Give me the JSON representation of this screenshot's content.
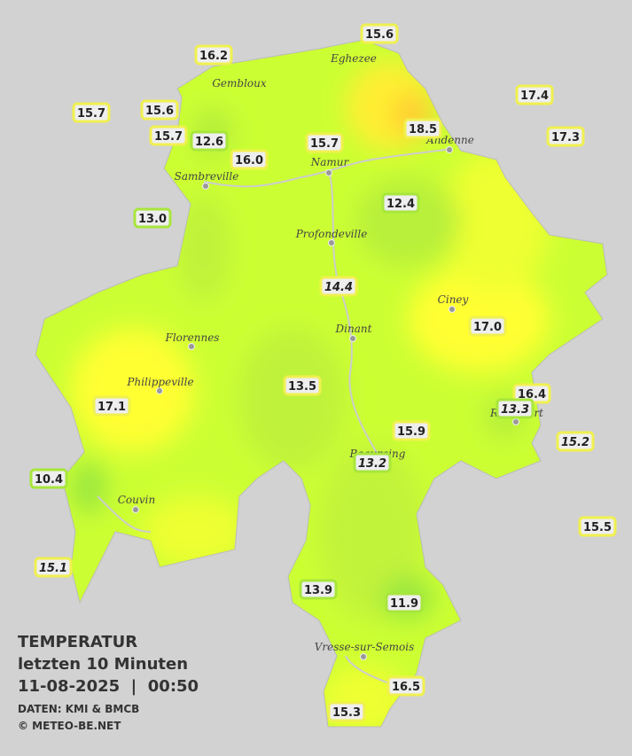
{
  "legend": {
    "title": "TEMPERATUR",
    "period": "letzten 10 Minuten",
    "datetime": "11-08-2025  |  00:50",
    "source": "DATEN: KMI & BMCB",
    "credit": "© METEO-BE.NET"
  },
  "cities": [
    "Eghezee",
    "Gembloux",
    "Andenne",
    "Namur",
    "Sambreville",
    "Profondeville",
    "Ciney",
    "Dinant",
    "Florennes",
    "Philippeville",
    "Rochefort",
    "Beauraing",
    "Couvin",
    "Vresse-sur-Semois"
  ],
  "stations": [
    "15.6",
    "16.2",
    "17.4",
    "15.7",
    "15.6",
    "18.5",
    "15.7",
    "12.6",
    "15.7",
    "17.3",
    "16.0",
    "13.0",
    "12.4",
    "14.4",
    "17.0",
    "13.5",
    "16.4",
    "17.1",
    "13.3",
    "15.9",
    "15.2",
    "13.2",
    "10.4",
    "15.5",
    "15.1",
    "13.9",
    "11.9",
    "16.5",
    "15.3"
  ]
}
